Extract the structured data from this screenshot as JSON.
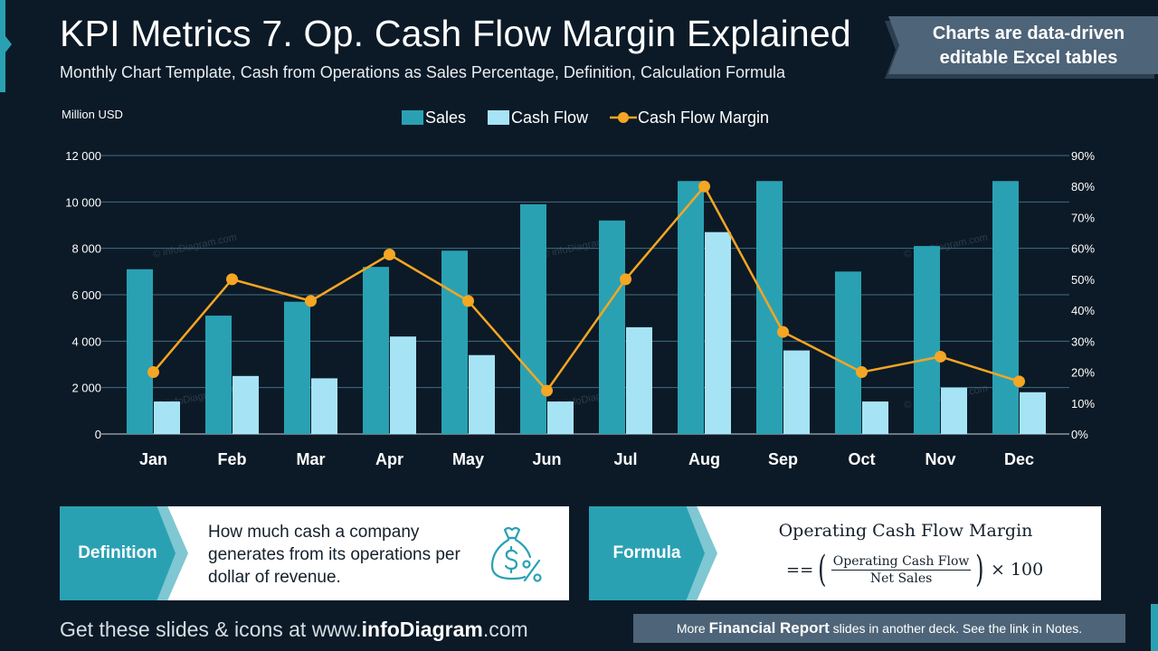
{
  "header": {
    "title": "KPI Metrics 7. Op. Cash Flow Margin Explained",
    "subtitle": "Monthly Chart Template, Cash from Operations as Sales Percentage, Definition, Calculation Formula",
    "badge_line1": "Charts are data-driven",
    "badge_line2": "editable Excel tables"
  },
  "chart_data": {
    "type": "bar",
    "categories": [
      "Jan",
      "Feb",
      "Mar",
      "Apr",
      "May",
      "Jun",
      "Jul",
      "Aug",
      "Sep",
      "Oct",
      "Nov",
      "Dec"
    ],
    "series": [
      {
        "name": "Sales",
        "type": "bar",
        "axis": "left",
        "color": "#2aa1b3",
        "values": [
          7100,
          5100,
          5700,
          7200,
          7900,
          9900,
          9200,
          10900,
          10900,
          7000,
          8100,
          10900
        ]
      },
      {
        "name": "Cash Flow",
        "type": "bar",
        "axis": "left",
        "color": "#a6e4f5",
        "values": [
          1400,
          2500,
          2400,
          4200,
          3400,
          1400,
          4600,
          8700,
          3600,
          1400,
          2000,
          1800
        ]
      },
      {
        "name": "Cash Flow Margin",
        "type": "line",
        "axis": "right",
        "color": "#f5a623",
        "values": [
          20,
          50,
          43,
          58,
          43,
          14,
          50,
          80,
          33,
          20,
          25,
          17
        ]
      }
    ],
    "ylabel": "Million USD",
    "ylim": [
      0,
      12000
    ],
    "yticks": [
      0,
      2000,
      4000,
      6000,
      8000,
      10000,
      12000
    ],
    "ytick_labels": [
      "0",
      "2 000",
      "4 000",
      "6 000",
      "8 000",
      "10 000",
      "12 000"
    ],
    "y2lim": [
      0,
      90
    ],
    "y2ticks": [
      0,
      10,
      20,
      30,
      40,
      50,
      60,
      70,
      80,
      90
    ],
    "y2tick_labels": [
      "0%",
      "10%",
      "20%",
      "30%",
      "40%",
      "50%",
      "60%",
      "70%",
      "80%",
      "90%"
    ],
    "legend_position": "top-center",
    "grid": true,
    "watermark": "© infoDiagram.com"
  },
  "definition": {
    "label": "Definition",
    "text": "How much cash a company generates from its operations per dollar of revenue.",
    "icon": "money-bag-percent-icon"
  },
  "formula": {
    "label": "Formula",
    "title": "Operating Cash Flow Margin",
    "prefix": "==",
    "numerator": "Operating Cash Flow",
    "denominator": "Net Sales",
    "multiplier": "× 100"
  },
  "footer": {
    "left_prefix": "Get these slides & icons at www.",
    "left_brand": "infoDiagram",
    "left_suffix": ".com",
    "right_prefix": "More ",
    "right_bold": "Financial Report",
    "right_suffix": " slides in another deck. See the link in Notes."
  },
  "colors": {
    "background": "#0c1a27",
    "accent": "#2aa1b3",
    "light_bar": "#a6e4f5",
    "line": "#f5a623",
    "badge": "#4e6478"
  }
}
